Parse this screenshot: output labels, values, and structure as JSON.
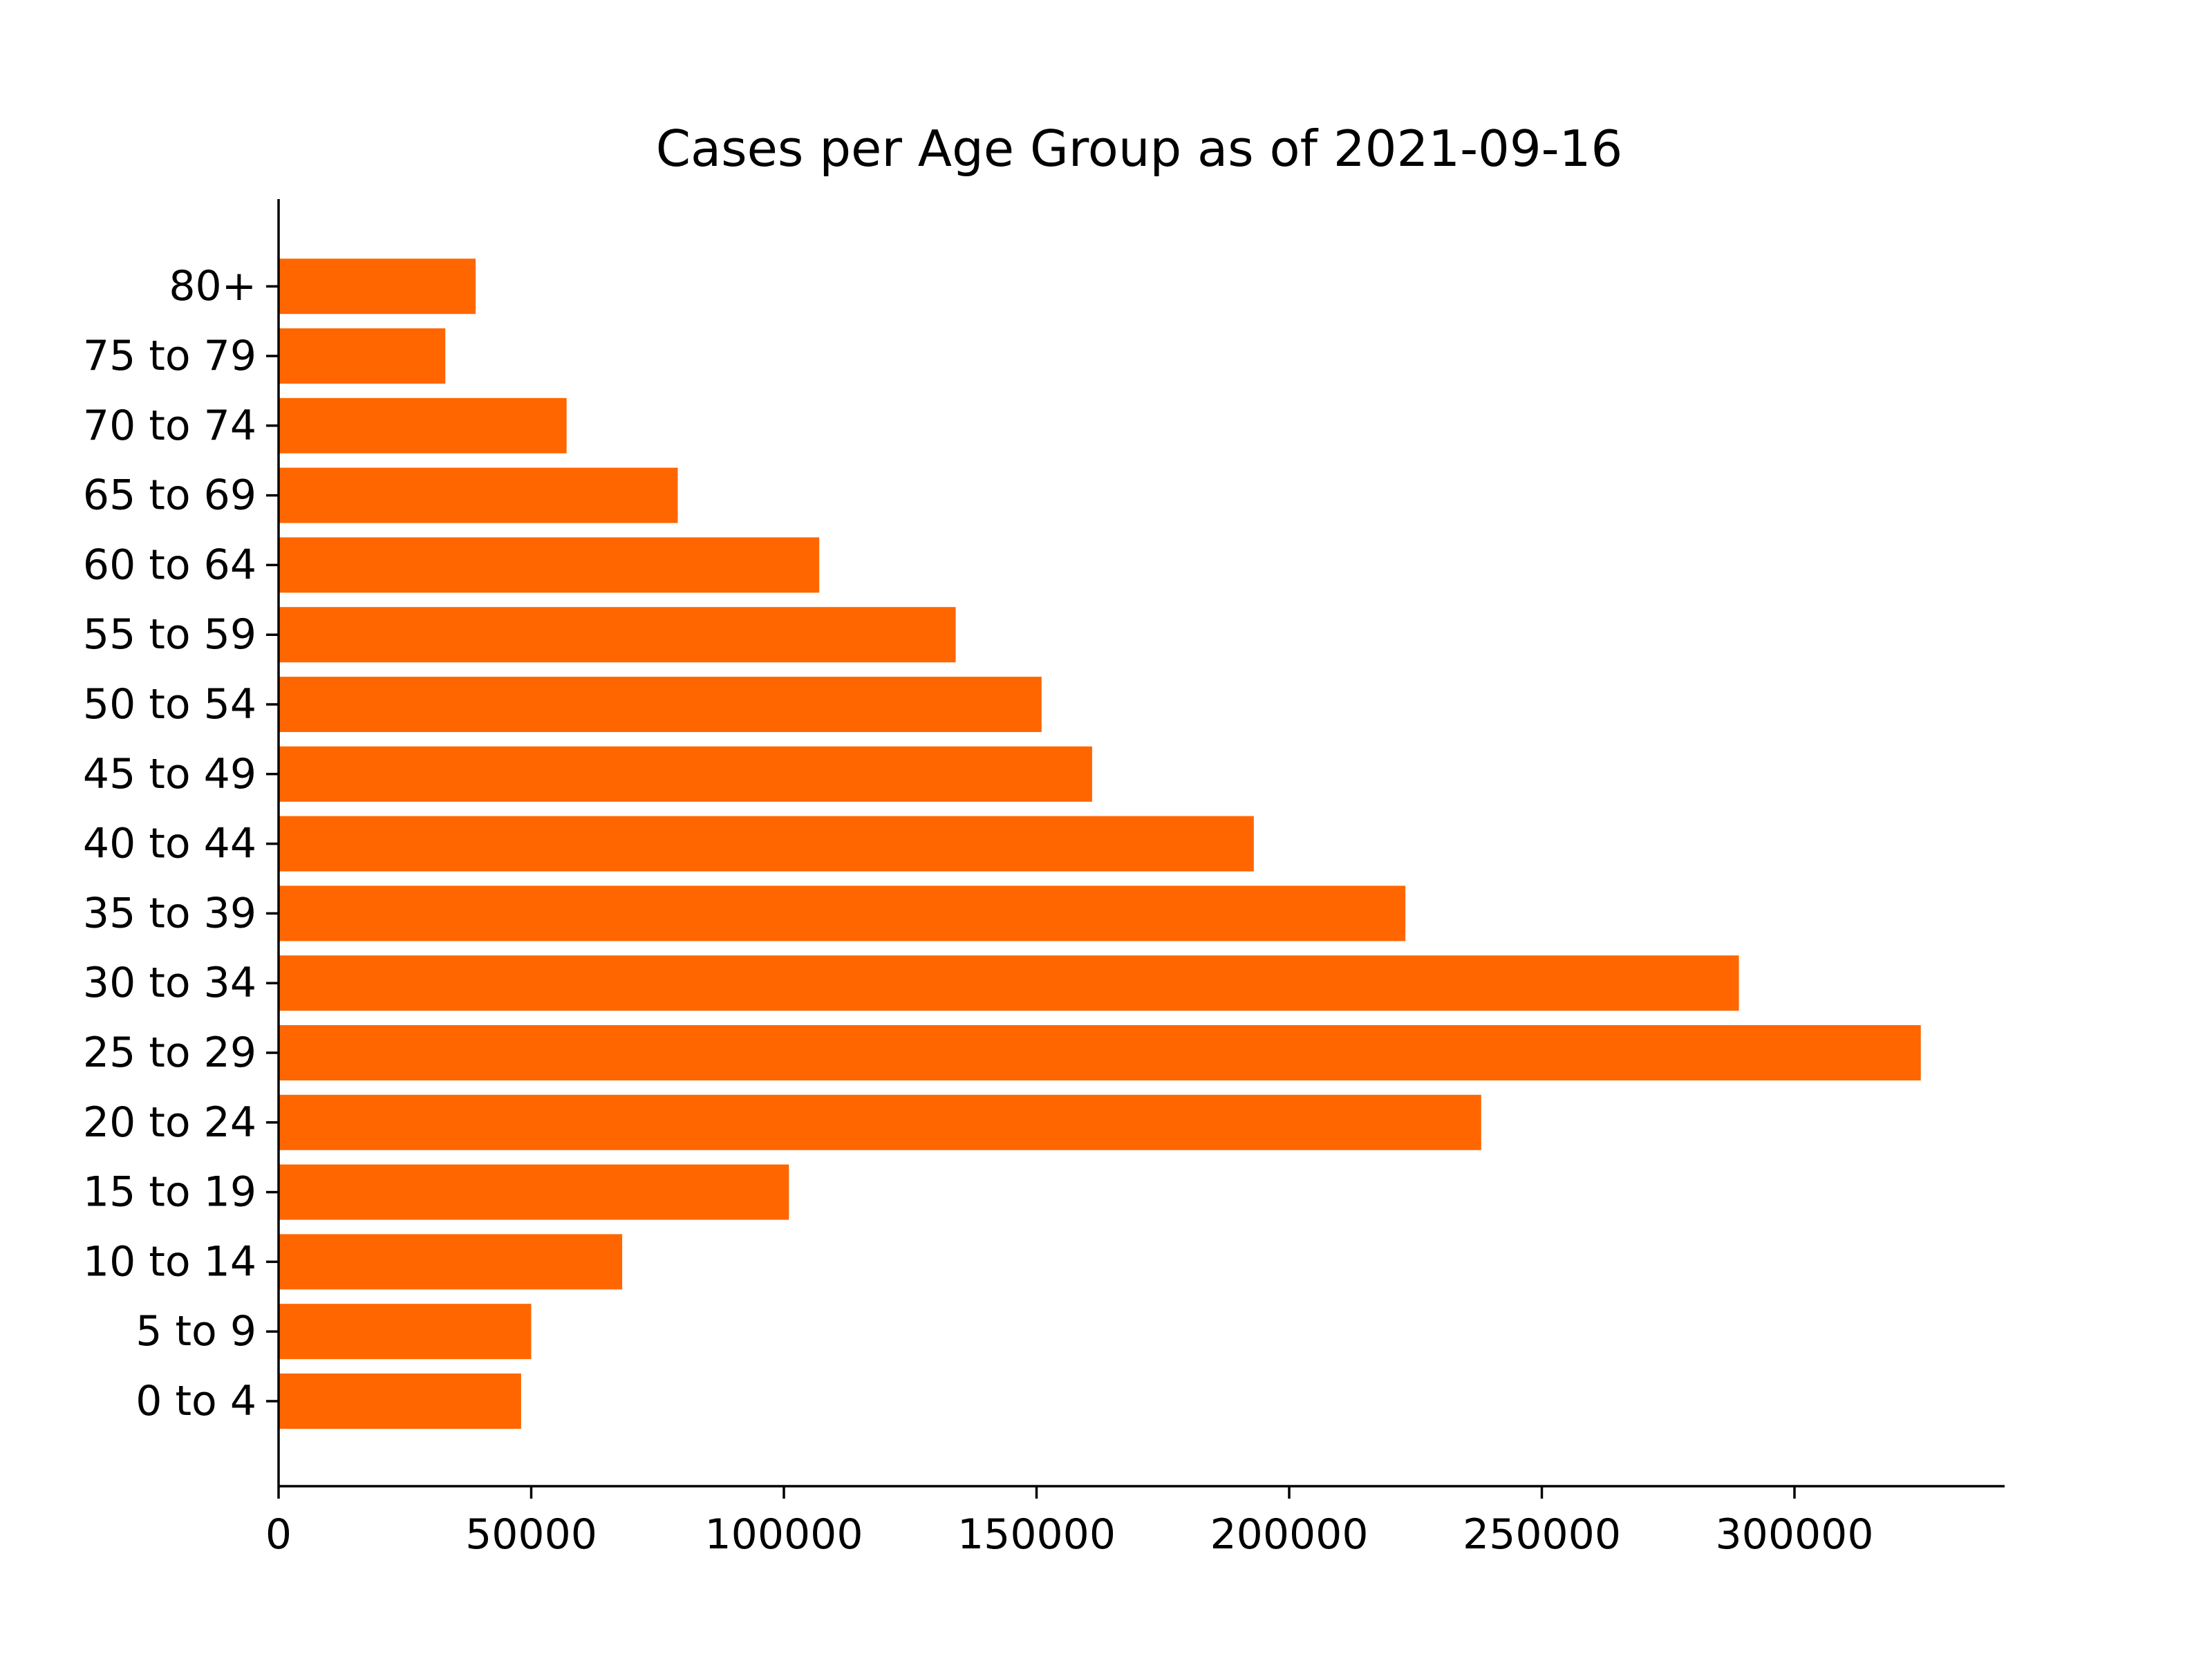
{
  "chart_data": {
    "type": "bar",
    "orientation": "horizontal",
    "title": "Cases per Age Group as of 2021-09-16",
    "xlabel": "",
    "ylabel": "",
    "categories": [
      "0 to 4",
      "5 to 9",
      "10 to 14",
      "15 to 19",
      "20 to 24",
      "25 to 29",
      "30 to 34",
      "35 to 39",
      "40 to 44",
      "45 to 49",
      "50 to 54",
      "55 to 59",
      "60 to 64",
      "65 to 69",
      "70 to 74",
      "75 to 79",
      "80+"
    ],
    "values": [
      48000,
      50000,
      68000,
      101000,
      238000,
      325000,
      289000,
      223000,
      193000,
      161000,
      151000,
      134000,
      107000,
      79000,
      57000,
      33000,
      39000
    ],
    "xlim": [
      0,
      342000
    ],
    "xticks": [
      0,
      50000,
      100000,
      150000,
      200000,
      250000,
      300000
    ],
    "xtick_labels": [
      "0",
      "50000",
      "100000",
      "150000",
      "200000",
      "250000",
      "300000"
    ],
    "grid": false,
    "legend": "none",
    "bar_color": "#ff6600"
  }
}
